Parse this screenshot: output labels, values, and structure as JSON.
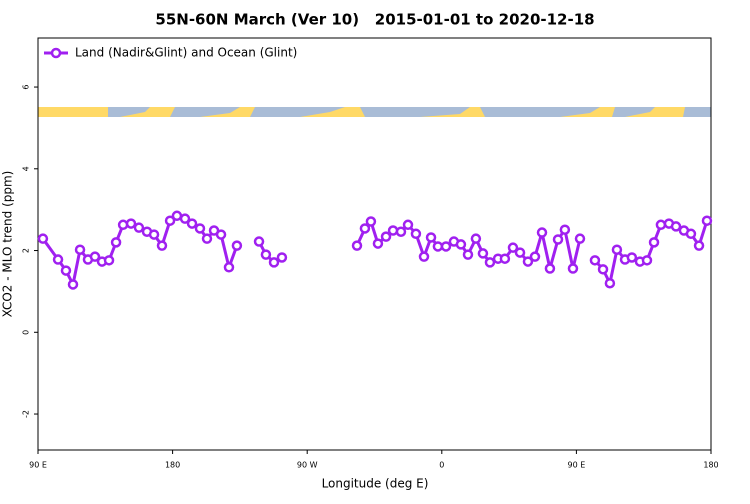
{
  "chart_data": {
    "type": "line",
    "title": "55N-60N March (Ver 10)   2015-01-01 to 2020-12-18",
    "xlabel": "Longitude (deg E)",
    "ylabel": "XCO2 - MLO trend (ppm)",
    "xlim": [
      90,
      540
    ],
    "ylim": [
      -2.88,
      7.2
    ],
    "xticks": [
      {
        "value": 90,
        "label": "90 E"
      },
      {
        "value": 180,
        "label": "180"
      },
      {
        "value": 270,
        "label": "90 W"
      },
      {
        "value": 360,
        "label": "0"
      },
      {
        "value": 450,
        "label": "90 E"
      },
      {
        "value": 540,
        "label": "180"
      }
    ],
    "yticks": [
      -2,
      0,
      2,
      4,
      6
    ],
    "legend": "top-left",
    "x": [
      93.3,
      103.4,
      108.7,
      113.4,
      118.1,
      123.4,
      128.1,
      132.8,
      137.5,
      142.2,
      146.9,
      152.2,
      157.5,
      162.9,
      167.6,
      172.9,
      178.3,
      182.9,
      188.3,
      193.0,
      198.3,
      203.0,
      207.7,
      212.4,
      217.7,
      223.0,
      230,
      237.8,
      242.4,
      247.8,
      253.1,
      278,
      303.3,
      308.6,
      312.6,
      317.3,
      322.7,
      327.4,
      332.7,
      337.4,
      342.7,
      348.1,
      352.8,
      357.4,
      362.8,
      368.1,
      372.8,
      377.5,
      382.8,
      387.5,
      392.2,
      397.6,
      402.2,
      407.6,
      412.3,
      417.6,
      422.3,
      427.0,
      432.3,
      437.7,
      442.3,
      447.7,
      452.4,
      457,
      462.4,
      467.8,
      472.4,
      477.1,
      482.5,
      487.1,
      492.5,
      497.2,
      501.9,
      506.5,
      511.9,
      516.6,
      521.9,
      526.6,
      532.0,
      537.3
    ],
    "series": [
      {
        "name": "Land (Nadir&Glint) and Ocean (Glint)",
        "color": "#a020f0",
        "values": [
          2.29,
          1.78,
          1.51,
          1.17,
          2.02,
          1.78,
          1.85,
          1.73,
          1.76,
          2.2,
          2.63,
          2.66,
          2.56,
          2.46,
          2.39,
          2.12,
          2.73,
          2.85,
          2.78,
          2.66,
          2.54,
          2.29,
          2.49,
          2.39,
          1.59,
          2.12,
          null,
          2.22,
          1.9,
          1.71,
          1.83,
          null,
          2.12,
          2.54,
          2.71,
          2.17,
          2.34,
          2.49,
          2.46,
          2.63,
          2.41,
          1.85,
          2.32,
          2.1,
          2.1,
          2.22,
          2.15,
          1.9,
          2.29,
          1.93,
          1.71,
          1.8,
          1.8,
          2.07,
          1.95,
          1.73,
          1.85,
          2.44,
          1.56,
          2.27,
          2.51,
          1.56,
          2.29,
          null,
          1.76,
          1.54,
          1.2,
          2.02,
          1.78,
          1.83,
          1.73,
          1.76,
          2.2,
          2.63,
          2.66,
          2.59,
          2.49,
          2.41,
          2.12,
          2.73
        ]
      }
    ]
  }
}
